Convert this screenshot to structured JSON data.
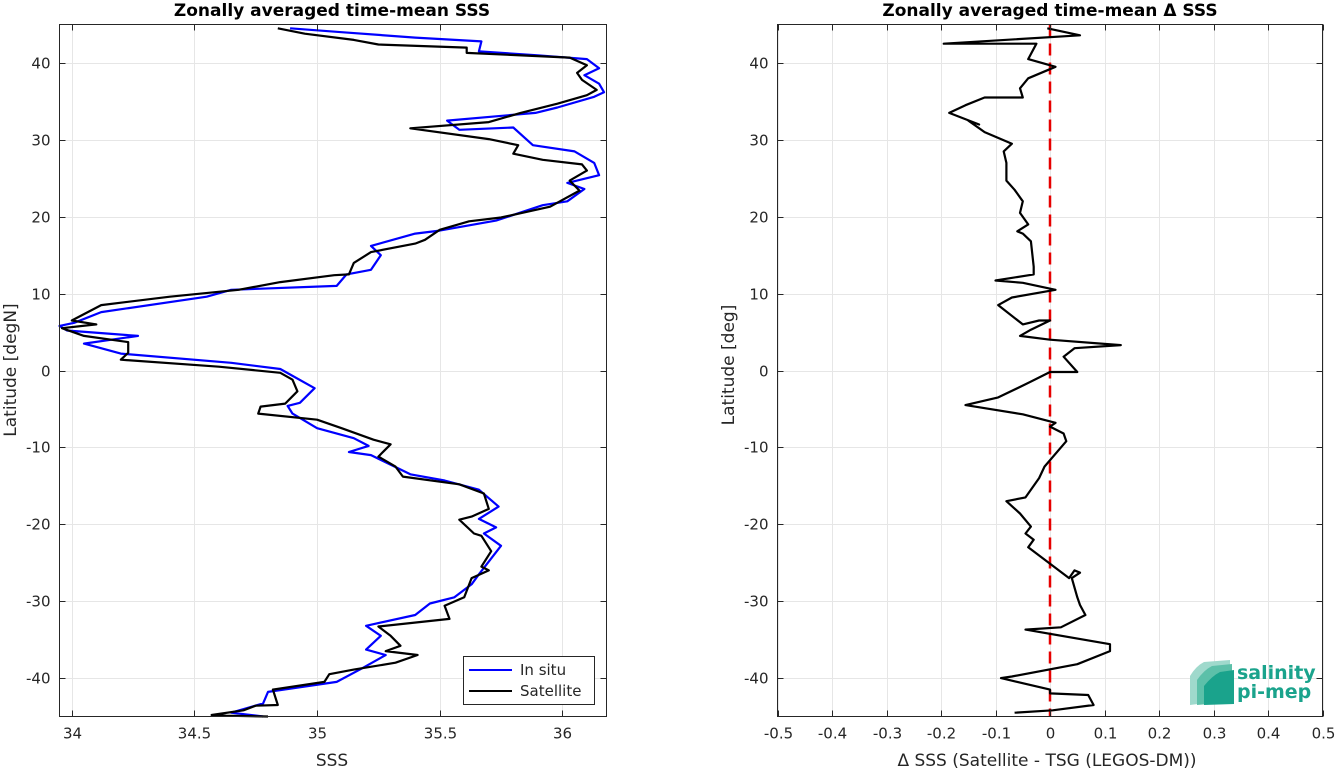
{
  "chart_data": [
    {
      "type": "line",
      "orientation": "vertical-profile",
      "title": "Zonally averaged time-mean SSS",
      "xlabel": "SSS",
      "ylabel": "Latitude [degN]",
      "xlim": [
        33.95,
        36.18
      ],
      "ylim": [
        -45,
        45
      ],
      "xticks": [
        34,
        34.5,
        35,
        35.5,
        36
      ],
      "xtick_labels": [
        "34",
        "34.5",
        "35",
        "35.5",
        "36"
      ],
      "yticks": [
        -40,
        -30,
        -20,
        -10,
        0,
        10,
        20,
        30,
        40
      ],
      "ytick_labels": [
        "-40",
        "-30",
        "-20",
        "-10",
        "0",
        "10",
        "20",
        "30",
        "40"
      ],
      "grid": true,
      "legend_position": "bottom-right",
      "series": [
        {
          "name": "In situ",
          "color": "#0000ff",
          "points": [
            [
              34.78,
              -45.0
            ],
            [
              34.65,
              -44.5
            ],
            [
              34.78,
              -43.3
            ],
            [
              34.8,
              -41.8
            ],
            [
              35.08,
              -40.5
            ],
            [
              35.18,
              -38.8
            ],
            [
              35.28,
              -37.0
            ],
            [
              35.2,
              -36.3
            ],
            [
              35.26,
              -34.5
            ],
            [
              35.2,
              -33.2
            ],
            [
              35.4,
              -31.8
            ],
            [
              35.46,
              -30.3
            ],
            [
              35.56,
              -29.5
            ],
            [
              35.63,
              -27.8
            ],
            [
              35.66,
              -26.5
            ],
            [
              35.75,
              -22.8
            ],
            [
              35.68,
              -21.2
            ],
            [
              35.73,
              -20.4
            ],
            [
              35.66,
              -19.3
            ],
            [
              35.74,
              -17.7
            ],
            [
              35.66,
              -15.5
            ],
            [
              35.52,
              -14.3
            ],
            [
              35.38,
              -13.5
            ],
            [
              35.22,
              -11.0
            ],
            [
              35.13,
              -10.6
            ],
            [
              35.21,
              -9.8
            ],
            [
              35.15,
              -8.8
            ],
            [
              35.0,
              -7.5
            ],
            [
              34.9,
              -5.6
            ],
            [
              34.88,
              -4.6
            ],
            [
              34.93,
              -4.2
            ],
            [
              34.99,
              -2.3
            ],
            [
              34.85,
              0.2
            ],
            [
              34.65,
              1.0
            ],
            [
              34.2,
              2.2
            ],
            [
              34.05,
              3.5
            ],
            [
              34.27,
              4.5
            ],
            [
              33.98,
              5.2
            ],
            [
              33.95,
              5.8
            ],
            [
              34.01,
              6.2
            ],
            [
              34.12,
              7.6
            ],
            [
              34.55,
              9.6
            ],
            [
              34.65,
              10.5
            ],
            [
              35.08,
              11.0
            ],
            [
              35.12,
              12.5
            ],
            [
              35.22,
              13.1
            ],
            [
              35.26,
              15.0
            ],
            [
              35.22,
              16.2
            ],
            [
              35.4,
              17.8
            ],
            [
              35.5,
              18.2
            ],
            [
              35.73,
              19.5
            ],
            [
              35.92,
              21.5
            ],
            [
              36.02,
              22.0
            ],
            [
              36.09,
              23.6
            ],
            [
              36.02,
              24.4
            ],
            [
              36.15,
              25.4
            ],
            [
              36.13,
              27.0
            ],
            [
              36.05,
              28.5
            ],
            [
              35.88,
              29.3
            ],
            [
              35.8,
              31.6
            ],
            [
              35.58,
              31.3
            ],
            [
              35.53,
              32.5
            ],
            [
              35.89,
              33.5
            ],
            [
              35.98,
              34.2
            ],
            [
              36.13,
              35.6
            ],
            [
              36.17,
              36.2
            ],
            [
              36.15,
              37.3
            ],
            [
              36.09,
              38.4
            ],
            [
              36.15,
              39.3
            ],
            [
              36.1,
              40.5
            ],
            [
              35.9,
              41.0
            ],
            [
              35.66,
              41.5
            ],
            [
              35.67,
              42.8
            ],
            [
              35.4,
              43.3
            ],
            [
              35.1,
              44.0
            ],
            [
              34.89,
              44.5
            ]
          ]
        },
        {
          "name": "Satellite",
          "color": "#000000",
          "points": [
            [
              34.8,
              -45.0
            ],
            [
              34.63,
              -44.9
            ],
            [
              34.57,
              -44.8
            ],
            [
              34.7,
              -44.2
            ],
            [
              34.75,
              -43.6
            ],
            [
              34.84,
              -43.5
            ],
            [
              34.82,
              -41.5
            ],
            [
              35.03,
              -40.5
            ],
            [
              35.05,
              -39.5
            ],
            [
              35.15,
              -38.9
            ],
            [
              35.32,
              -38.0
            ],
            [
              35.41,
              -37.0
            ],
            [
              35.28,
              -36.5
            ],
            [
              35.34,
              -35.8
            ],
            [
              35.3,
              -34.5
            ],
            [
              35.25,
              -33.3
            ],
            [
              35.54,
              -32.3
            ],
            [
              35.52,
              -30.6
            ],
            [
              35.6,
              -29.5
            ],
            [
              35.63,
              -27.0
            ],
            [
              35.7,
              -26.0
            ],
            [
              35.67,
              -25.5
            ],
            [
              35.71,
              -23.5
            ],
            [
              35.67,
              -21.5
            ],
            [
              35.64,
              -21.2
            ],
            [
              35.58,
              -19.4
            ],
            [
              35.63,
              -19.0
            ],
            [
              35.7,
              -18.0
            ],
            [
              35.68,
              -16.0
            ],
            [
              35.58,
              -14.8
            ],
            [
              35.35,
              -13.8
            ],
            [
              35.32,
              -12.5
            ],
            [
              35.25,
              -11.2
            ],
            [
              35.3,
              -9.6
            ],
            [
              35.23,
              -9.0
            ],
            [
              35.1,
              -7.5
            ],
            [
              35.0,
              -6.4
            ],
            [
              34.76,
              -5.6
            ],
            [
              34.77,
              -4.7
            ],
            [
              34.87,
              -4.3
            ],
            [
              34.92,
              -2.7
            ],
            [
              34.9,
              -1.2
            ],
            [
              34.85,
              -0.3
            ],
            [
              34.6,
              0.5
            ],
            [
              34.2,
              1.4
            ],
            [
              34.23,
              2.3
            ],
            [
              34.23,
              3.7
            ],
            [
              34.05,
              4.5
            ],
            [
              33.96,
              5.5
            ],
            [
              34.1,
              6.0
            ],
            [
              34.0,
              6.5
            ],
            [
              34.12,
              8.5
            ],
            [
              34.4,
              9.6
            ],
            [
              34.68,
              10.5
            ],
            [
              34.85,
              11.5
            ],
            [
              35.07,
              12.4
            ],
            [
              35.13,
              12.5
            ],
            [
              35.15,
              14.0
            ],
            [
              35.22,
              15.4
            ],
            [
              35.4,
              16.5
            ],
            [
              35.44,
              17.0
            ],
            [
              35.5,
              18.3
            ],
            [
              35.62,
              19.4
            ],
            [
              35.75,
              19.9
            ],
            [
              35.95,
              21.3
            ],
            [
              36.07,
              23.4
            ],
            [
              36.03,
              24.7
            ],
            [
              36.1,
              26.0
            ],
            [
              36.08,
              26.8
            ],
            [
              35.92,
              27.4
            ],
            [
              35.8,
              28.2
            ],
            [
              35.82,
              29.3
            ],
            [
              35.7,
              30.1
            ],
            [
              35.38,
              31.5
            ],
            [
              35.7,
              32.3
            ],
            [
              35.83,
              33.5
            ],
            [
              35.98,
              34.7
            ],
            [
              36.1,
              35.8
            ],
            [
              36.14,
              36.5
            ],
            [
              36.08,
              37.8
            ],
            [
              36.06,
              38.7
            ],
            [
              36.1,
              39.7
            ],
            [
              36.03,
              40.7
            ],
            [
              35.61,
              41.3
            ],
            [
              35.61,
              42.0
            ],
            [
              35.25,
              42.4
            ],
            [
              35.15,
              43.0
            ],
            [
              34.95,
              43.8
            ],
            [
              34.84,
              44.5
            ]
          ]
        }
      ]
    },
    {
      "type": "line",
      "orientation": "vertical-profile",
      "title": "Zonally averaged time-mean Δ SSS",
      "xlabel": "Δ SSS (Satellite - TSG (LEGOS-DM))",
      "ylabel": "Latitude [deg]",
      "xlim": [
        -0.5,
        0.5
      ],
      "ylim": [
        -45,
        45
      ],
      "xticks": [
        -0.5,
        -0.4,
        -0.3,
        -0.2,
        -0.1,
        0,
        0.1,
        0.2,
        0.3,
        0.4,
        0.5
      ],
      "xtick_labels": [
        "-0.5",
        "-0.4",
        "-0.3",
        "-0.2",
        "-0.1",
        "0",
        "0.1",
        "0.2",
        "0.3",
        "0.4",
        "0.5"
      ],
      "yticks": [
        -40,
        -30,
        -20,
        -10,
        0,
        10,
        20,
        30,
        40
      ],
      "ytick_labels": [
        "-40",
        "-30",
        "-20",
        "-10",
        "0",
        "10",
        "20",
        "30",
        "40"
      ],
      "grid": true,
      "reference_line": {
        "x": 0,
        "color": "#e60000",
        "style": "dashed"
      },
      "series": [
        {
          "color": "#000000",
          "points": [
            [
              -0.065,
              -44.5
            ],
            [
              0.005,
              -44.2
            ],
            [
              0.08,
              -43.5
            ],
            [
              0.07,
              -42.2
            ],
            [
              0.0,
              -42.0
            ],
            [
              0.0,
              -41.5
            ],
            [
              -0.09,
              -40.0
            ],
            [
              -0.07,
              -39.8
            ],
            [
              0.05,
              -38.2
            ],
            [
              0.11,
              -36.5
            ],
            [
              0.11,
              -35.6
            ],
            [
              -0.045,
              -33.7
            ],
            [
              0.02,
              -33.4
            ],
            [
              0.065,
              -31.8
            ],
            [
              0.055,
              -30.5
            ],
            [
              0.05,
              -29.5
            ],
            [
              0.04,
              -27.0
            ],
            [
              0.055,
              -26.3
            ],
            [
              0.045,
              -26.0
            ],
            [
              0.035,
              -27.0
            ],
            [
              -0.04,
              -23.0
            ],
            [
              -0.03,
              -22.0
            ],
            [
              -0.045,
              -21.2
            ],
            [
              -0.035,
              -20.3
            ],
            [
              -0.055,
              -18.6
            ],
            [
              -0.08,
              -17.0
            ],
            [
              -0.045,
              -16.5
            ],
            [
              -0.02,
              -14.0
            ],
            [
              -0.01,
              -12.5
            ],
            [
              0.03,
              -9.2
            ],
            [
              0.025,
              -8.2
            ],
            [
              0.0,
              -7.3
            ],
            [
              0.01,
              -6.8
            ],
            [
              -0.05,
              -5.7
            ],
            [
              -0.155,
              -4.5
            ],
            [
              -0.095,
              -3.5
            ],
            [
              -0.045,
              -1.8
            ],
            [
              0.0,
              -0.2
            ],
            [
              0.05,
              -0.2
            ],
            [
              0.025,
              1.8
            ],
            [
              0.045,
              2.9
            ],
            [
              0.13,
              3.3
            ],
            [
              0.0,
              4.0
            ],
            [
              -0.055,
              4.5
            ],
            [
              -0.035,
              5.3
            ],
            [
              0.0,
              6.5
            ],
            [
              -0.02,
              6.5
            ],
            [
              -0.05,
              6.0
            ],
            [
              -0.095,
              8.5
            ],
            [
              -0.07,
              9.5
            ],
            [
              0.01,
              10.5
            ],
            [
              -0.05,
              11.4
            ],
            [
              -0.1,
              11.7
            ],
            [
              -0.03,
              12.5
            ],
            [
              -0.03,
              13.5
            ],
            [
              -0.035,
              16.8
            ],
            [
              -0.05,
              17.8
            ],
            [
              -0.06,
              18.1
            ],
            [
              -0.04,
              19.0
            ],
            [
              -0.055,
              20.5
            ],
            [
              -0.05,
              22.0
            ],
            [
              -0.065,
              23.5
            ],
            [
              -0.08,
              24.7
            ],
            [
              -0.08,
              27.0
            ],
            [
              -0.085,
              28.5
            ],
            [
              -0.07,
              29.5
            ],
            [
              -0.12,
              31.0
            ],
            [
              -0.15,
              32.5
            ],
            [
              -0.13,
              32.0
            ],
            [
              -0.185,
              33.5
            ],
            [
              -0.155,
              34.5
            ],
            [
              -0.12,
              35.5
            ],
            [
              -0.05,
              35.5
            ],
            [
              -0.055,
              36.7
            ],
            [
              -0.04,
              38.0
            ],
            [
              0.01,
              39.5
            ],
            [
              -0.04,
              40.5
            ],
            [
              -0.025,
              42.5
            ],
            [
              -0.195,
              42.5
            ],
            [
              0.055,
              43.6
            ],
            [
              -0.005,
              44.5
            ]
          ]
        }
      ]
    }
  ],
  "logo": {
    "line1": "salinity",
    "line2": "pi-mep",
    "color": "#1aa38c"
  }
}
